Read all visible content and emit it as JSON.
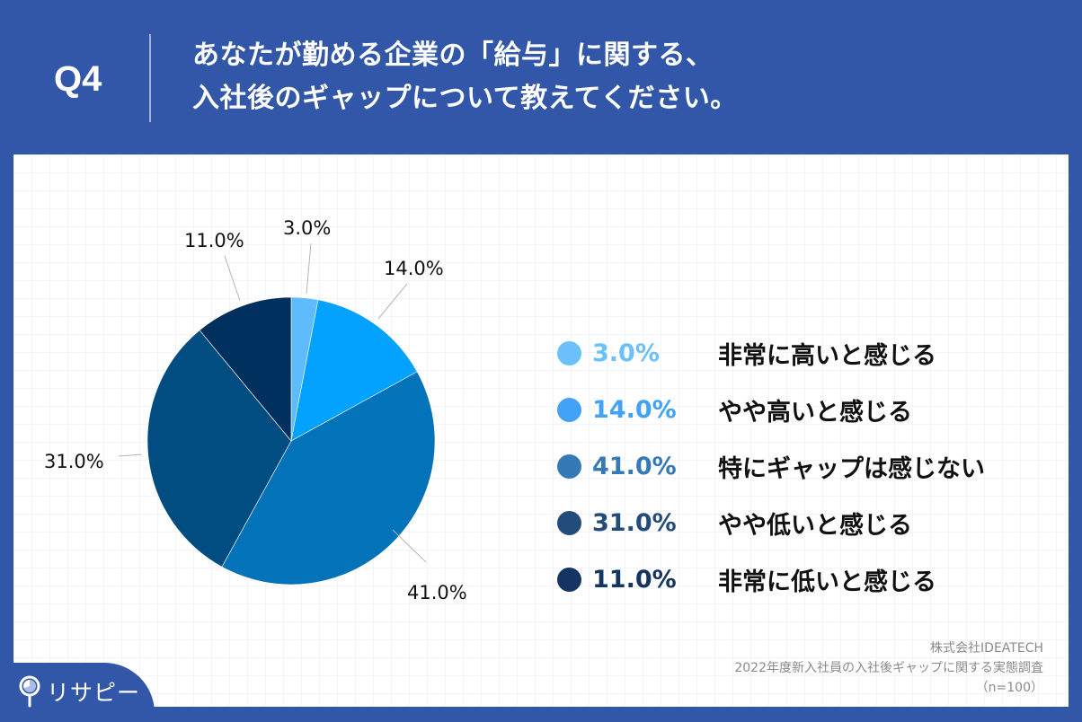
{
  "header": {
    "question_number": "Q4",
    "title_lines": [
      "あなたが勤める企業の「給与」に関する、",
      "入社後のギャップについて教えてください。"
    ]
  },
  "colors": {
    "background": "#3257a8",
    "slices": [
      "#5ebcfc",
      "#03a2ff",
      "#0272b9",
      "#014c80",
      "#00305e"
    ],
    "legend_dots": [
      "#6cc0fb",
      "#41a2f6",
      "#3579b7",
      "#234c7b",
      "#143462"
    ]
  },
  "pie_labels": [
    "3.0%",
    "14.0%",
    "41.0%",
    "31.0%",
    "11.0%"
  ],
  "legend": [
    {
      "pct": "3.0%",
      "label": "非常に高いと感じる"
    },
    {
      "pct": "14.0%",
      "label": "やや高いと感じる"
    },
    {
      "pct": "41.0%",
      "label": "特にギャップは感じない"
    },
    {
      "pct": "31.0%",
      "label": "やや低いと感じる"
    },
    {
      "pct": "11.0%",
      "label": "非常に低いと感じる"
    }
  ],
  "source": {
    "company": "株式会社IDEATECH",
    "survey": "2022年度新入社員の入社後ギャップに関する実態調査",
    "sample": "（n=100）"
  },
  "logo": {
    "text": "リサピー",
    "icon": "magnifier-pie-icon"
  },
  "chart_data": {
    "type": "pie",
    "title": "あなたが勤める企業の「給与」に関する、入社後のギャップについて教えてください。",
    "categories": [
      "非常に高いと感じる",
      "やや高いと感じる",
      "特にギャップは感じない",
      "やや低いと感じる",
      "非常に低いと感じる"
    ],
    "values": [
      3.0,
      14.0,
      41.0,
      31.0,
      11.0
    ],
    "unit": "%",
    "start_angle": "12 o'clock, clockwise",
    "legend_position": "right",
    "n": 100
  }
}
